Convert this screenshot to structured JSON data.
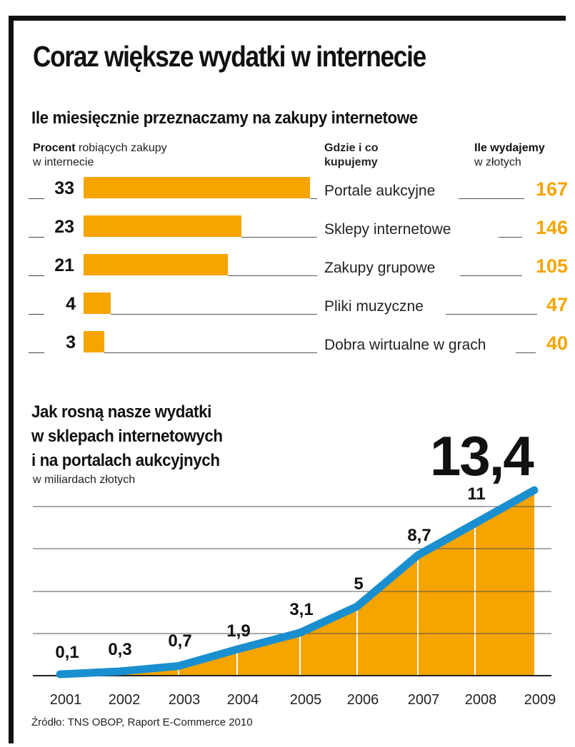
{
  "title": "Coraz większe wydatki w internecie",
  "section1": {
    "heading": "Ile miesięcznie przeznaczamy na zakupy internetowe",
    "col1_bold": "Procent",
    "col1_rest": " robiących zakupy",
    "col1_line2": "w internecie",
    "col2_line1": "Gdzie i co",
    "col2_line2": "kupujemy",
    "col3_bold": "Ile wydajemy",
    "col3_line2": "w złotych",
    "rows": [
      {
        "percent": 33,
        "label": "Portale aukcyjne",
        "amount": 167
      },
      {
        "percent": 23,
        "label": "Sklepy internetowe",
        "amount": 146
      },
      {
        "percent": 21,
        "label": "Zakupy grupowe",
        "amount": 105
      },
      {
        "percent": 4,
        "label": "Pliki muzyczne",
        "amount": 47
      },
      {
        "percent": 3,
        "label": "Dobra wirtualne w grach",
        "amount": 40
      }
    ]
  },
  "section2": {
    "heading_line1": "Jak rosną nasze wydatki",
    "heading_line2": "w sklepach internetowych",
    "heading_line3": "i na portalach aukcyjnych",
    "unit": "w miliardach złotych",
    "highlight": "13,4"
  },
  "chart_data": {
    "type": "area",
    "title": "Jak rosną nasze wydatki w sklepach internetowych i na portalach aukcyjnych",
    "ylabel": "w miliardach złotych",
    "categories": [
      "2001",
      "2002",
      "2003",
      "2004",
      "2005",
      "2006",
      "2007",
      "2008",
      "2009"
    ],
    "values": [
      0.1,
      0.3,
      0.7,
      1.9,
      3.1,
      5,
      8.7,
      11,
      13.4
    ],
    "labels": [
      "0,1",
      "0,3",
      "0,7",
      "1,9",
      "3,1",
      "5",
      "8,7",
      "11",
      "13,4"
    ],
    "ylim": [
      0,
      14.5
    ],
    "grid": true,
    "fill_color": "#f5a400",
    "line_color": "#1a8fd0"
  },
  "colors": {
    "accent": "#f5a400",
    "line": "#1a8fd0",
    "text": "#111111"
  },
  "source": "Źródło: TNS OBOP, Raport E-Commerce 2010"
}
